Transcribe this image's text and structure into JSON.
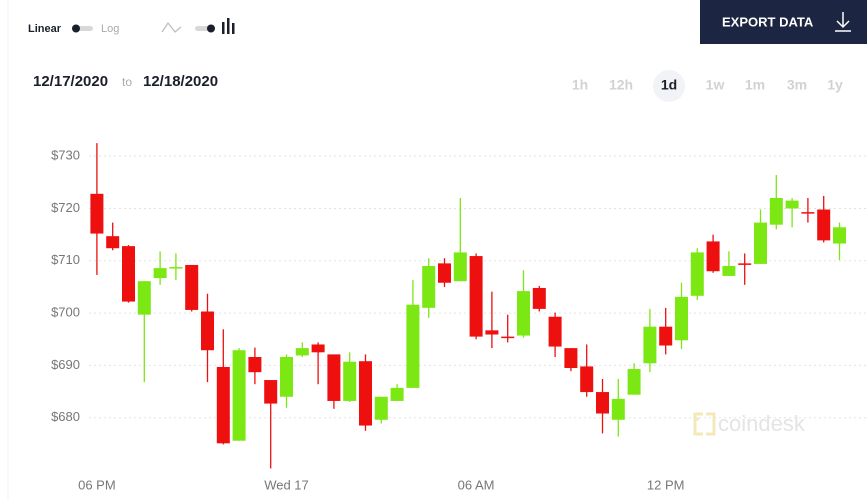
{
  "controls": {
    "scale_options": [
      "Linear",
      "Log"
    ],
    "export_button": "EXPORT DATA",
    "date_from": "12/17/2020",
    "date_separator": "to",
    "date_to": "12/18/2020",
    "ranges": [
      "1h",
      "12h",
      "1d",
      "1w",
      "1m",
      "3m",
      "1y"
    ],
    "selected_range": 2,
    "watermark": "coindesk"
  },
  "chart_data": {
    "type": "candlestick",
    "x": [
      "06 PM",
      null,
      null,
      null,
      null,
      null,
      null,
      null,
      null,
      null,
      null,
      null,
      "Wed 17",
      null,
      null,
      null,
      null,
      null,
      null,
      null,
      null,
      null,
      null,
      null,
      "06 AM",
      null,
      null,
      null,
      null,
      null,
      null,
      null,
      null,
      null,
      null,
      null,
      "12 PM",
      null,
      null,
      null,
      null,
      null,
      null,
      null,
      null,
      null,
      null,
      null
    ],
    "open": [
      722.8,
      714.7,
      712.8,
      699.7,
      706.7,
      708.6,
      709.2,
      700.3,
      689.7,
      675.6,
      691.6,
      687.2,
      684.0,
      691.9,
      694.0,
      692.1,
      683.2,
      690.8,
      679.6,
      683.2,
      685.7,
      701.0,
      709.5,
      706.1,
      710.9,
      696.7,
      695.5,
      695.7,
      704.8,
      699.3,
      693.3,
      689.8,
      684.9,
      679.6,
      684.4,
      690.4,
      697.4,
      694.8,
      703.3,
      713.7,
      707.1,
      709.5,
      709.4,
      716.9,
      720.0,
      719.3,
      719.8,
      713.3
    ],
    "high": [
      732.5,
      717.3,
      713.0,
      706.1,
      711.8,
      711.4,
      709.2,
      703.7,
      696.9,
      693.3,
      693.4,
      687.2,
      692.1,
      694.4,
      694.4,
      692.1,
      692.5,
      692.1,
      684.0,
      686.4,
      706.3,
      710.5,
      710.5,
      722.0,
      711.4,
      704.1,
      699.7,
      708.2,
      705.2,
      700.1,
      693.3,
      694.0,
      687.4,
      687.4,
      690.4,
      700.8,
      701.0,
      705.8,
      712.4,
      715.0,
      711.8,
      711.4,
      719.8,
      726.4,
      722.0,
      722.0,
      722.4,
      717.3
    ],
    "low": [
      707.3,
      712.0,
      702.0,
      686.8,
      705.4,
      706.3,
      700.3,
      686.8,
      674.9,
      675.6,
      686.4,
      670.3,
      681.9,
      691.6,
      686.4,
      681.7,
      683.0,
      677.5,
      678.9,
      683.2,
      685.7,
      699.1,
      705.0,
      706.1,
      695.0,
      693.3,
      694.4,
      695.3,
      700.3,
      691.6,
      688.9,
      684.0,
      677.0,
      676.4,
      684.4,
      688.7,
      692.1,
      693.1,
      702.5,
      707.7,
      707.1,
      705.4,
      709.4,
      716.0,
      716.4,
      717.3,
      713.5,
      710.1
    ],
    "close": [
      715.2,
      712.4,
      702.2,
      706.1,
      708.6,
      708.8,
      700.6,
      692.9,
      675.1,
      692.9,
      688.7,
      682.7,
      691.6,
      693.3,
      692.5,
      683.2,
      690.7,
      678.5,
      684.0,
      685.7,
      701.6,
      709.0,
      705.8,
      711.6,
      695.5,
      695.9,
      695.3,
      704.2,
      700.8,
      693.6,
      689.5,
      684.9,
      680.8,
      683.6,
      689.3,
      697.4,
      693.8,
      703.1,
      711.6,
      708.0,
      709.0,
      709.3,
      717.3,
      722.0,
      721.5,
      719.1,
      713.9,
      716.4
    ],
    "up_color": "#7ce813",
    "down_color": "#ee0f0f",
    "ylim": [
      670,
      735
    ],
    "yticks": [
      {
        "value": 680,
        "label": "$680"
      },
      {
        "value": 690,
        "label": "$690"
      },
      {
        "value": 700,
        "label": "$700"
      },
      {
        "value": 710,
        "label": "$710"
      },
      {
        "value": 720,
        "label": "$720"
      },
      {
        "value": 730,
        "label": "$730"
      }
    ],
    "grid": true
  }
}
